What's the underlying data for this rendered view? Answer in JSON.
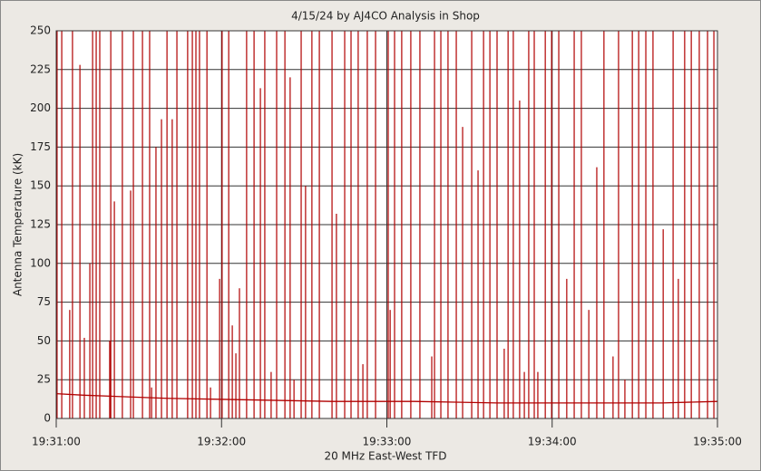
{
  "chart_data": {
    "type": "line",
    "title": "4/15/24  by  AJ4CO Analysis  in  Shop",
    "xlabel": "20 MHz East-West TFD",
    "ylabel": "Antenna Temperature (kK)",
    "xlim": [
      70260,
      70500
    ],
    "xticks": [
      {
        "value": 70260,
        "label": "19:31:00"
      },
      {
        "value": 70320,
        "label": "19:32:00"
      },
      {
        "value": 70380,
        "label": "19:33:00"
      },
      {
        "value": 70440,
        "label": "19:34:00"
      },
      {
        "value": 70500,
        "label": "19:35:00"
      }
    ],
    "ylim": [
      0,
      250
    ],
    "yticks": [
      0,
      25,
      50,
      75,
      100,
      125,
      150,
      175,
      200,
      225,
      250
    ],
    "grid": true,
    "series": [
      {
        "style": "line",
        "color": "#b00000",
        "x": [
          70260,
          70270,
          70300,
          70330,
          70360,
          70390,
          70420,
          70450,
          70480,
          70500
        ],
        "values": [
          16,
          15,
          13,
          12,
          11,
          11,
          10,
          10,
          10,
          11
        ]
      },
      {
        "style": "stem",
        "color": "#b00000",
        "x": [
          70260.3,
          70262,
          70264.9,
          70265.9,
          70268.6,
          70270.2,
          70272.2,
          70273.2,
          70274.5,
          70275.8,
          70279.4,
          70279.8,
          70281.1,
          70284,
          70287,
          70288,
          70291.3,
          70293.9,
          70294.6,
          70296.2,
          70298.2,
          70300.2,
          70302.1,
          70303.8,
          70307.7,
          70309.4,
          70310.7,
          70312,
          70314.7,
          70316,
          70319.3,
          70320.2,
          70322.6,
          70323.9,
          70325.2,
          70326.5,
          70329.1,
          70331.8,
          70334.1,
          70335.7,
          70338,
          70340,
          70343,
          70344.9,
          70346.3,
          70348.9,
          70350.5,
          70352.8,
          70355.5,
          70360.1,
          70361.7,
          70364.7,
          70367,
          70369.6,
          70371.3,
          70372.9,
          70375.9,
          70380.5,
          70381.2,
          70382.8,
          70385.4,
          70388.7,
          70392,
          70396.3,
          70397.3,
          70399.6,
          70402.2,
          70405.2,
          70407.5,
          70410.8,
          70413.1,
          70415.1,
          70417.4,
          70420,
          70422.6,
          70424,
          70425.9,
          70428.2,
          70429.9,
          70431.5,
          70433.5,
          70434.8,
          70437.5,
          70439.8,
          70442.4,
          70445.3,
          70448,
          70450.6,
          70453.3,
          70456.2,
          70458.8,
          70462.1,
          70464.1,
          70466.4,
          70469.1,
          70471.4,
          70474,
          70476.6,
          70480.3,
          70483.9,
          70485.8,
          70488.1,
          70490.5,
          70493.4,
          70496.4,
          70498.7
        ],
        "values": [
          250,
          250,
          70,
          250,
          228,
          52,
          100,
          250,
          250,
          250,
          50,
          250,
          140,
          250,
          147,
          250,
          250,
          250,
          20,
          175,
          193,
          250,
          193,
          250,
          250,
          250,
          250,
          250,
          250,
          20,
          90,
          250,
          250,
          60,
          42,
          84,
          250,
          250,
          213,
          250,
          30,
          250,
          250,
          220,
          25,
          250,
          150,
          250,
          250,
          250,
          132,
          250,
          250,
          250,
          35,
          250,
          250,
          250,
          70,
          250,
          250,
          250,
          250,
          40,
          250,
          250,
          250,
          250,
          188,
          250,
          160,
          250,
          250,
          250,
          45,
          250,
          250,
          205,
          30,
          250,
          250,
          30,
          250,
          250,
          250,
          90,
          250,
          250,
          70,
          162,
          250,
          40,
          250,
          25,
          250,
          250,
          250,
          250,
          122,
          250,
          90,
          250,
          250,
          250,
          250,
          250
        ]
      }
    ]
  }
}
